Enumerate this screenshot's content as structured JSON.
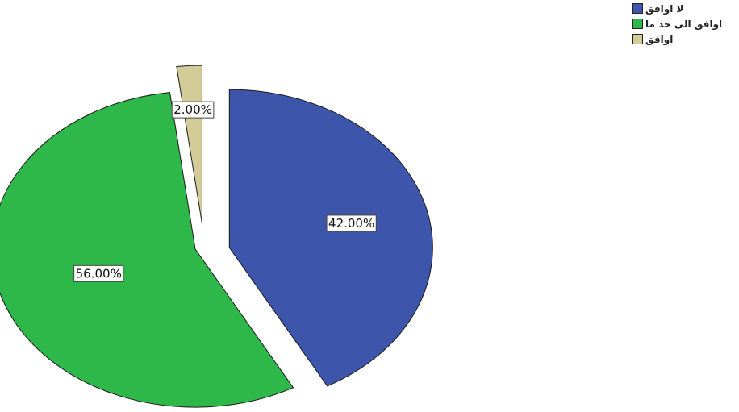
{
  "chart_data": {
    "type": "pie",
    "exploded": true,
    "slices": [
      {
        "label": "لا اوافق",
        "value": 42.0,
        "value_label": "42.00%",
        "color": "#3d56ab"
      },
      {
        "label": "اوافق الى حد ما",
        "value": 56.0,
        "value_label": "56.00%",
        "color": "#2eb84a"
      },
      {
        "label": "اوافق",
        "value": 2.0,
        "value_label": "2.00%",
        "color": "#d4cc98"
      }
    ],
    "legend": {
      "position": "top-right"
    }
  }
}
